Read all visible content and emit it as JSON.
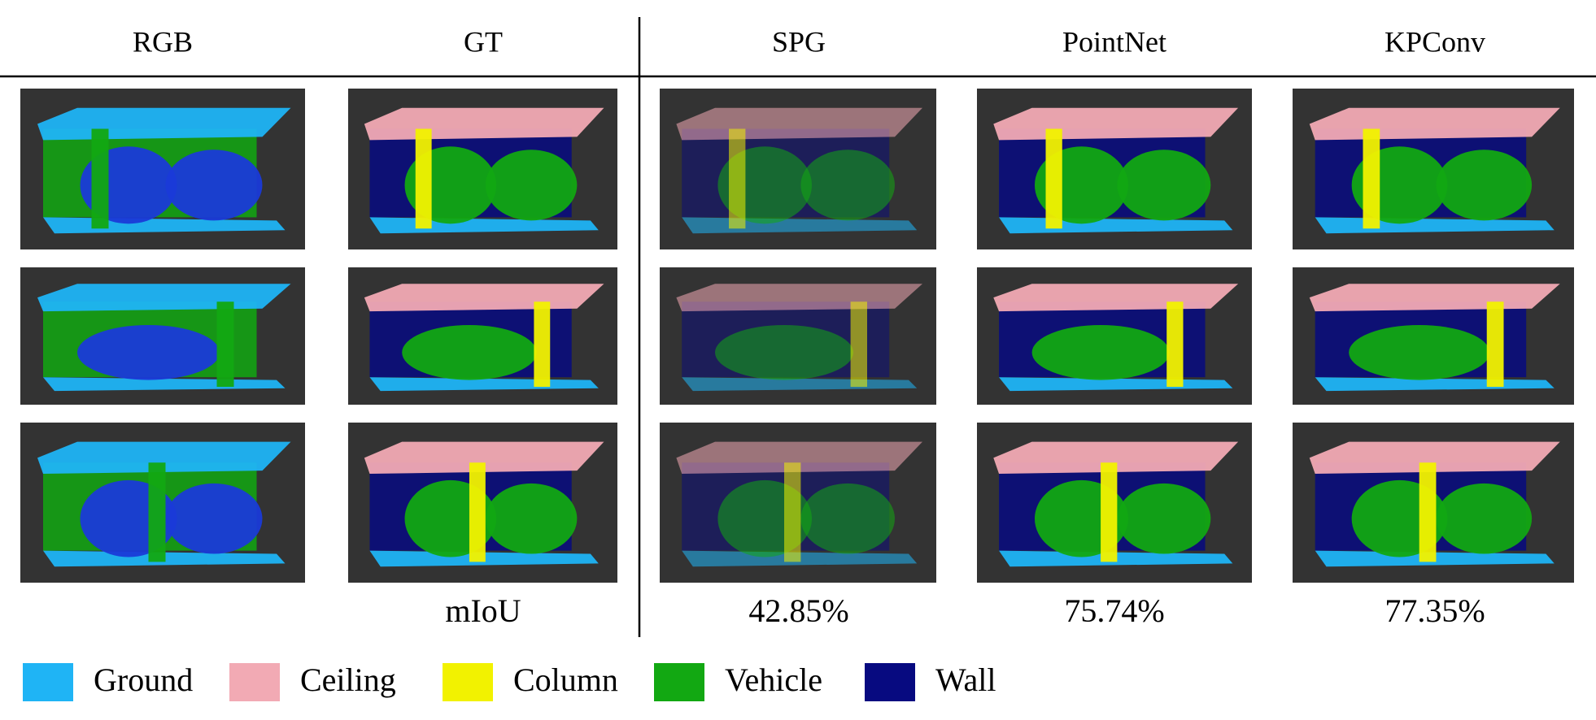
{
  "header": {
    "columns": [
      "RGB",
      "GT",
      "SPG",
      "PointNet",
      "KPConv"
    ]
  },
  "metric": {
    "label": "mIoU",
    "values": [
      "42.85%",
      "75.74%",
      "77.35%"
    ]
  },
  "legend": [
    {
      "label": "Ground",
      "color": "#1fb4f5"
    },
    {
      "label": "Ceiling",
      "color": "#f2aab4"
    },
    {
      "label": "Column",
      "color": "#f2f200"
    },
    {
      "label": "Vehicle",
      "color": "#12a812"
    },
    {
      "label": "Wall",
      "color": "#070a80"
    }
  ]
}
